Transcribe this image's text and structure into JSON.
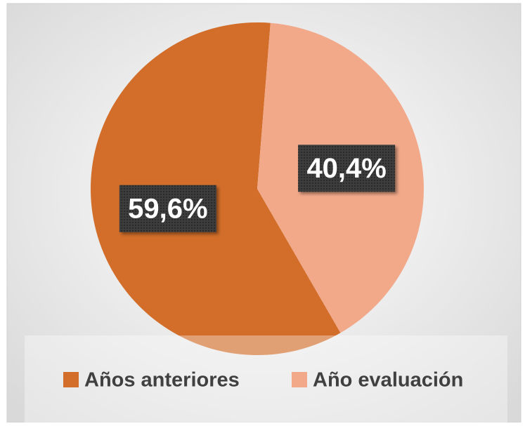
{
  "chart_data": {
    "type": "pie",
    "categories": [
      "Años anteriores",
      "Año evaluación"
    ],
    "values": [
      59.6,
      40.4
    ],
    "value_labels": [
      "59,6%",
      "40,4%"
    ],
    "colors": [
      "#d26e2a",
      "#f2a98a"
    ],
    "legend": "bottom"
  }
}
